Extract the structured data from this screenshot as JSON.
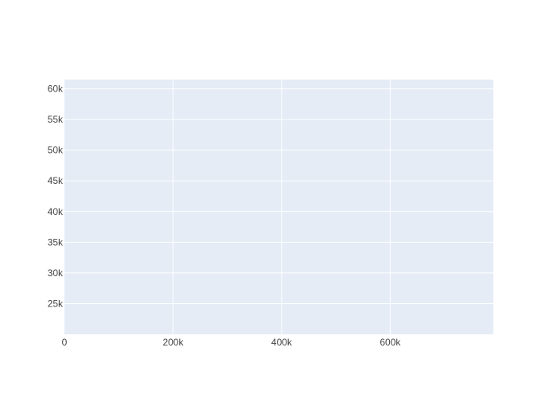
{
  "chart_data": {
    "type": "scatter",
    "title": "",
    "xlabel": "",
    "ylabel": "",
    "xlim": [
      0,
      790000
    ],
    "ylim": [
      20000,
      61500
    ],
    "x_ticks": [
      {
        "value": 0,
        "label": "0"
      },
      {
        "value": 200000,
        "label": "200k"
      },
      {
        "value": 400000,
        "label": "400k"
      },
      {
        "value": 600000,
        "label": "600k"
      }
    ],
    "y_ticks": [
      {
        "value": 25000,
        "label": "25k"
      },
      {
        "value": 30000,
        "label": "30k"
      },
      {
        "value": 35000,
        "label": "35k"
      },
      {
        "value": 40000,
        "label": "40k"
      },
      {
        "value": 45000,
        "label": "45k"
      },
      {
        "value": 50000,
        "label": "50k"
      },
      {
        "value": 55000,
        "label": "55k"
      },
      {
        "value": 60000,
        "label": "60k"
      }
    ],
    "grid": true,
    "series": [],
    "colors": {
      "plot_background": "#E5ECF6",
      "grid": "#FFFFFF",
      "tick_label": "#444444"
    }
  }
}
